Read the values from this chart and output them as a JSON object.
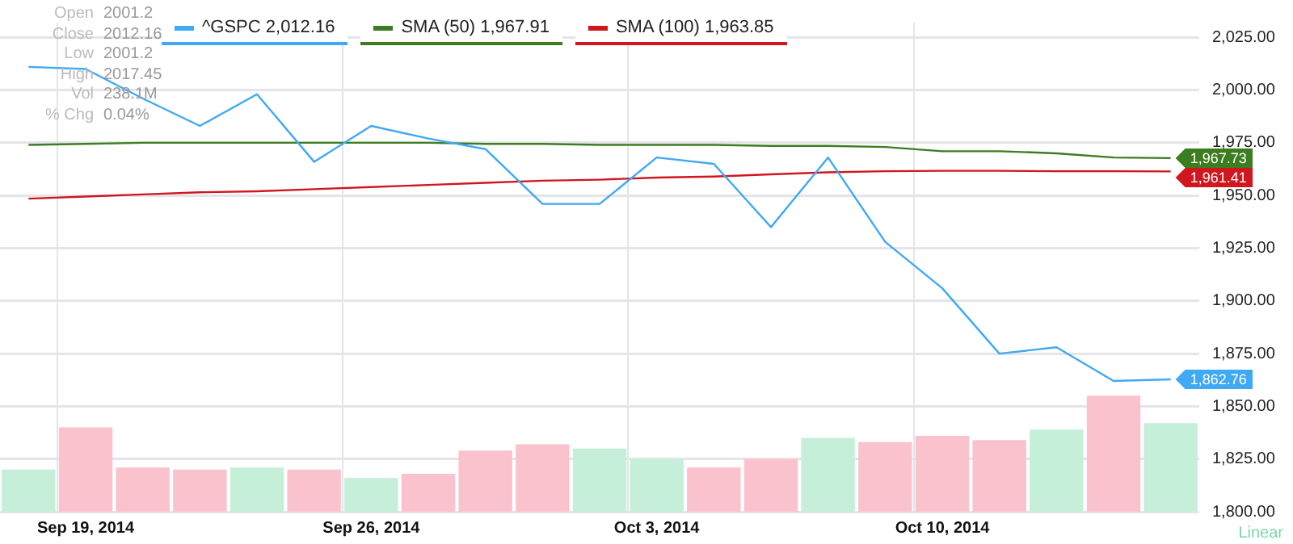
{
  "chart_data": {
    "type": "line",
    "categories": [
      null,
      "Sep 19, 2014",
      null,
      null,
      null,
      null,
      "Sep 26, 2014",
      null,
      null,
      null,
      null,
      "Oct 3, 2014",
      null,
      null,
      null,
      null,
      "Oct 10, 2014",
      null,
      null,
      null,
      null
    ],
    "series": [
      {
        "type": "bar",
        "colors": [
          "#c6efd9",
          "#fac2cc",
          "#fac2cc",
          "#fac2cc",
          "#c6efd9",
          "#fac2cc",
          "#c6efd9",
          "#fac2cc",
          "#fac2cc",
          "#fac2cc",
          "#c6efd9",
          "#c6efd9",
          "#fac2cc",
          "#fac2cc",
          "#c6efd9",
          "#fac2cc",
          "#fac2cc",
          "#fac2cc",
          "#c6efd9",
          "#fac2cc",
          "#c6efd9"
        ],
        "base": [
          1800,
          1800,
          1800,
          1800,
          1800,
          1800,
          1800,
          1800,
          1800,
          1800,
          1800,
          1800,
          1800,
          1800,
          1800,
          1800,
          1800,
          1800,
          1800,
          1800,
          1800
        ],
        "values": [
          20,
          40,
          21,
          20,
          21,
          20,
          16,
          18,
          29,
          32,
          30,
          25,
          21,
          25,
          35,
          33,
          36,
          34,
          39,
          55,
          42
        ]
      },
      {
        "name": "^GSPC 2,012.16",
        "color": "#3fa9f5",
        "values": [
          2011,
          2010,
          1996,
          1983,
          1998,
          1966,
          1983,
          1977,
          1972,
          1946,
          1946,
          1968,
          1965,
          1935,
          1968,
          1928,
          1906,
          1875,
          1878,
          1862,
          1862.76
        ],
        "value_labels": [
          null,
          null,
          null,
          null,
          null,
          null,
          null,
          null,
          null,
          null,
          null,
          null,
          null,
          null,
          null,
          null,
          null,
          null,
          null,
          null,
          "1,862.76"
        ]
      },
      {
        "name": "SMA (50) 1,967.91",
        "color": "#3b7d1f",
        "values": [
          1974,
          1974.5,
          1975,
          1975,
          1975,
          1975,
          1975,
          1975,
          1974.5,
          1974.5,
          1974,
          1974,
          1974,
          1973.5,
          1973.5,
          1973,
          1971,
          1971,
          1970,
          1968,
          1967.73
        ],
        "value_labels": [
          null,
          null,
          null,
          null,
          null,
          null,
          null,
          null,
          null,
          null,
          null,
          null,
          null,
          null,
          null,
          null,
          null,
          null,
          null,
          null,
          "1,967.73"
        ]
      },
      {
        "name": "SMA (100) 1,963.85",
        "color": "#d0161e",
        "values": [
          1948.5,
          1949.5,
          1950.5,
          1951.5,
          1952,
          1953,
          1954,
          1955,
          1956,
          1957,
          1957.5,
          1958.5,
          1959,
          1960,
          1961,
          1961.5,
          1961.7,
          1961.7,
          1961.5,
          1961.5,
          1961.41
        ],
        "value_labels": [
          null,
          null,
          null,
          null,
          null,
          null,
          null,
          null,
          null,
          null,
          null,
          null,
          null,
          null,
          null,
          null,
          null,
          null,
          null,
          null,
          "1,961.41"
        ]
      }
    ],
    "ylim": [
      1800,
      2032
    ],
    "yticks": [
      {
        "value": 1800,
        "label": "1,800.00"
      },
      {
        "value": 1825,
        "label": "1,825.00"
      },
      {
        "value": 1850,
        "label": "1,850.00"
      },
      {
        "value": 1875,
        "label": "1,875.00"
      },
      {
        "value": 1900,
        "label": "1,900.00"
      },
      {
        "value": 1925,
        "label": "1,925.00"
      },
      {
        "value": 1950,
        "label": "1,950.00"
      },
      {
        "value": 1975,
        "label": "1,975.00"
      },
      {
        "value": 2000,
        "label": "2,000.00"
      },
      {
        "value": 2025,
        "label": "2,025.00"
      }
    ],
    "grid": true,
    "legend": "top",
    "marker": "none",
    "line_style": "solid",
    "annotations": [
      "Open 2001.2",
      "Close 2012.16",
      "Low 2001.2",
      "High 2017.45",
      "Vol 238.1M",
      "% Chg 0.04%",
      "Linear"
    ]
  }
}
